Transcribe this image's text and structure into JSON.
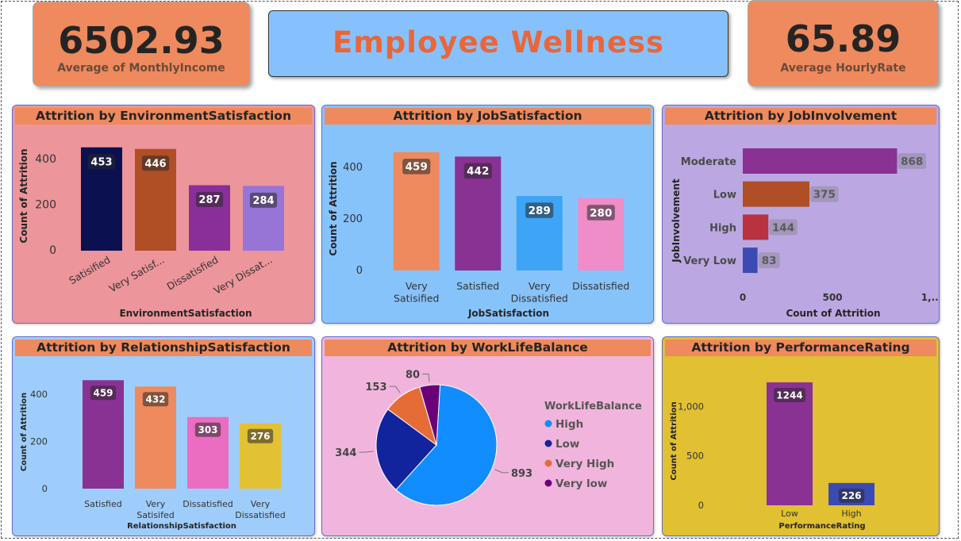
{
  "kpis": {
    "monthly_income": {
      "value": "6502.93",
      "label": "Average of MonthlyIncome"
    },
    "hourly_rate": {
      "value": "65.89",
      "label": "Average HourlyRate"
    }
  },
  "dashboard_title": "Employee Wellness",
  "colors": {
    "kpi_bg": "#ee8a5d",
    "title_bg": "#87c1fd",
    "title_text": "#e8673a",
    "panel_title_bg": "#ee8a5d"
  },
  "chart_data": [
    {
      "id": "env",
      "type": "bar",
      "title": "Attrition by EnvironmentSatisfaction",
      "xlabel": "EnvironmentSatisfaction",
      "ylabel": "Count of Attrition",
      "categories": [
        "Satisified",
        "Very Satisf...",
        "Dissatisfied",
        "Very Dissat..."
      ],
      "values": [
        453,
        446,
        287,
        284
      ],
      "colors": [
        "#0a1050",
        "#b04e25",
        "#8a2f9a",
        "#9775d6"
      ],
      "yticks": [
        "0",
        "200",
        "400"
      ],
      "ylim": [
        0,
        480
      ],
      "bg": "#ec959b"
    },
    {
      "id": "job",
      "type": "bar",
      "title": "Attrition by JobSatisfaction",
      "xlabel": "JobSatisfaction",
      "ylabel": "Count of Attrition",
      "categories": [
        [
          "Very",
          "Satisified"
        ],
        [
          "Satisfied"
        ],
        [
          "Very",
          "Dissatisfied"
        ],
        [
          "Dissatisfied"
        ]
      ],
      "values": [
        459,
        442,
        289,
        280
      ],
      "colors": [
        "#ee8a5d",
        "#8a3194",
        "#3ea4f6",
        "#ee8dc8"
      ],
      "yticks": [
        "0",
        "200",
        "400"
      ],
      "ylim": [
        0,
        480
      ],
      "bg": "#87c3fb"
    },
    {
      "id": "inv",
      "type": "hbar",
      "title": "Attrition by JobInvolvement",
      "xlabel": "Count of Attrition",
      "ylabel": "JobInvolvement",
      "categories": [
        "Moderate",
        "Low",
        "High",
        "Very Low"
      ],
      "values": [
        868,
        375,
        144,
        83
      ],
      "colors": [
        "#8a3194",
        "#b04e25",
        "#b8333f",
        "#3c4bb3"
      ],
      "xticks": [
        "0",
        "500",
        "1,..."
      ],
      "xlim": [
        0,
        1000
      ],
      "bg": "#bba8e2"
    },
    {
      "id": "rel",
      "type": "bar",
      "title": "Attrition by RelationshipSatisfaction",
      "xlabel": "RelationshipSatisfaction",
      "ylabel": "Count of Attrition",
      "categories": [
        [
          "Satisfied"
        ],
        [
          "Very",
          "Satisifed"
        ],
        [
          "Dissatisfied"
        ],
        [
          "Very",
          "Dissatisfied"
        ]
      ],
      "values": [
        459,
        432,
        303,
        276
      ],
      "colors": [
        "#8a3194",
        "#ee8a5d",
        "#ea6dc1",
        "#e3c135"
      ],
      "yticks": [
        "0",
        "200",
        "400"
      ],
      "ylim": [
        0,
        480
      ],
      "bg": "#9fcdfb"
    },
    {
      "id": "wlb",
      "type": "pie",
      "title": "Attrition by WorkLifeBalance",
      "legend_title": "WorkLifeBalance",
      "categories": [
        "High",
        "Low",
        "Very High",
        "Very low"
      ],
      "values": [
        893,
        344,
        153,
        80
      ],
      "colors": [
        "#118dff",
        "#12239e",
        "#e66c37",
        "#6b007b"
      ],
      "bg": "#f1b5dd"
    },
    {
      "id": "perf",
      "type": "bar",
      "title": "Attrition by PerformanceRating",
      "xlabel": "PerformanceRating",
      "ylabel": "Count of Attrition",
      "categories": [
        [
          "Low"
        ],
        [
          "High"
        ]
      ],
      "values": [
        1244,
        226
      ],
      "colors": [
        "#8a3194",
        "#3c4bb3"
      ],
      "yticks": [
        "0",
        "500",
        "1,000"
      ],
      "ylim": [
        0,
        1300
      ],
      "bg": "#e1c032"
    }
  ]
}
